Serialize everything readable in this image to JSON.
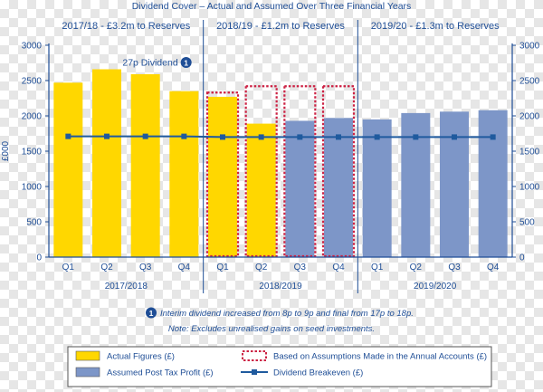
{
  "colors": {
    "text": "#1f4e96",
    "axis": "#1f4e96",
    "actual": "#ffd700",
    "assumed": "#7d96c8",
    "breakeven": "#1f5a9e",
    "dashed": "#cc2244"
  },
  "chart_data": {
    "type": "bar",
    "title": "Dividend Cover – Actual and Assumed Over Three Financial Years",
    "ylabel": "£000",
    "ylim": [
      0,
      3000
    ],
    "yticks": [
      0,
      500,
      1000,
      1500,
      2000,
      2500,
      3000
    ],
    "yticklabels": [
      "0",
      "500",
      "1000",
      "1500",
      "2000",
      "2500",
      "3000"
    ],
    "categories": [
      "Q1",
      "Q2",
      "Q3",
      "Q4",
      "Q1",
      "Q2",
      "Q3",
      "Q4",
      "Q1",
      "Q2",
      "Q3",
      "Q4"
    ],
    "years": [
      {
        "label": "2017/2018",
        "header": "2017/18 - £3.2m to Reserves"
      },
      {
        "label": "2018/2019",
        "header": "2018/19 - £1.2m to Reserves"
      },
      {
        "label": "2019/2020",
        "header": "2019/20 - £1.3m to Reserves"
      }
    ],
    "series": [
      {
        "name": "Actual Figures (£)",
        "kind": "bar",
        "values": [
          2470,
          2660,
          2590,
          2350,
          2270,
          1890,
          null,
          null,
          null,
          null,
          null,
          null
        ]
      },
      {
        "name": "Assumed Post Tax Profit (£)",
        "kind": "bar",
        "values": [
          null,
          null,
          null,
          null,
          null,
          null,
          1930,
          1970,
          1950,
          2040,
          2060,
          2080
        ]
      },
      {
        "name": "Based on Assumptions Made in the Annual Accounts (£)",
        "kind": "dashed-outline",
        "values": [
          null,
          null,
          null,
          null,
          2330,
          2420,
          2420,
          2420,
          null,
          null,
          null,
          null
        ]
      },
      {
        "name": "Dividend Breakeven (£)",
        "kind": "line",
        "values": [
          1710,
          1710,
          1710,
          1710,
          1700,
          1700,
          1700,
          1700,
          1700,
          1700,
          1700,
          1700
        ]
      }
    ],
    "annotations": [
      {
        "text": "27p Dividend",
        "marker": "1",
        "category_index": 2,
        "value": 2750
      }
    ],
    "footnotes": [
      {
        "marker": "1",
        "text": "Interim dividend increased from 8p to 9p and final from 17p to 18p."
      },
      {
        "marker": "",
        "text": "Note: Excludes unrealised gains on seed investments."
      }
    ],
    "legend": [
      {
        "label": "Actual Figures (£)",
        "swatch": "actual"
      },
      {
        "label": "Based on Assumptions Made in the Annual Accounts (£)",
        "swatch": "dashed"
      },
      {
        "label": "Assumed Post Tax Profit (£)",
        "swatch": "assumed"
      },
      {
        "label": "Dividend Breakeven (£)",
        "swatch": "line"
      }
    ],
    "legend_position": "bottom-center"
  }
}
